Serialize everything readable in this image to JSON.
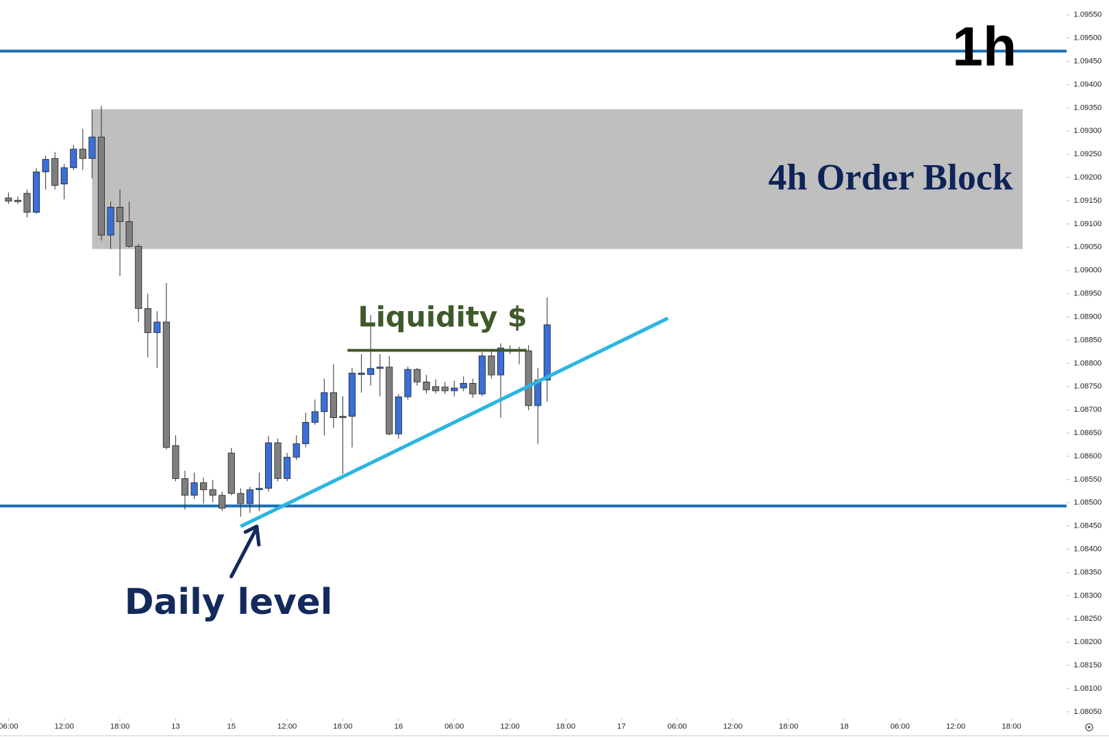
{
  "chart_data": {
    "type": "candlestick",
    "timeframe": "1h",
    "up_color": "#3a6fd8",
    "down_color": "#7f7f7f",
    "xlim": [
      -0.914,
      113.93
    ],
    "ylim": [
      1.08035,
      1.09582
    ],
    "xticks": [
      {
        "value": 0,
        "label": "06:00"
      },
      {
        "value": 6,
        "label": "12:00"
      },
      {
        "value": 12,
        "label": "18:00"
      },
      {
        "value": 18,
        "label": "13"
      },
      {
        "value": 24,
        "label": "15"
      },
      {
        "value": 30,
        "label": "12:00"
      },
      {
        "value": 36,
        "label": "18:00"
      },
      {
        "value": 42,
        "label": "16"
      },
      {
        "value": 48,
        "label": "06:00"
      },
      {
        "value": 54,
        "label": "12:00"
      },
      {
        "value": 60,
        "label": "18:00"
      },
      {
        "value": 66,
        "label": "17"
      },
      {
        "value": 72,
        "label": "06:00"
      },
      {
        "value": 78,
        "label": "12:00"
      },
      {
        "value": 84,
        "label": "18:00"
      },
      {
        "value": 90,
        "label": "18"
      },
      {
        "value": 96,
        "label": "06:00"
      },
      {
        "value": 102,
        "label": "12:00"
      },
      {
        "value": 108,
        "label": "18:00"
      }
    ],
    "yticks": [
      {
        "value": 1.0805,
        "label": "1.08050"
      },
      {
        "value": 1.081,
        "label": "1.08100"
      },
      {
        "value": 1.0815,
        "label": "1.08150"
      },
      {
        "value": 1.082,
        "label": "1.08200"
      },
      {
        "value": 1.0825,
        "label": "1.08250"
      },
      {
        "value": 1.083,
        "label": "1.08300"
      },
      {
        "value": 1.0835,
        "label": "1.08350"
      },
      {
        "value": 1.084,
        "label": "1.08400"
      },
      {
        "value": 1.0845,
        "label": "1.08450"
      },
      {
        "value": 1.085,
        "label": "1.08500"
      },
      {
        "value": 1.0855,
        "label": "1.08550"
      },
      {
        "value": 1.086,
        "label": "1.08600"
      },
      {
        "value": 1.0865,
        "label": "1.08650"
      },
      {
        "value": 1.087,
        "label": "1.08700"
      },
      {
        "value": 1.0875,
        "label": "1.08750"
      },
      {
        "value": 1.088,
        "label": "1.08800"
      },
      {
        "value": 1.0885,
        "label": "1.08850"
      },
      {
        "value": 1.089,
        "label": "1.08900"
      },
      {
        "value": 1.0895,
        "label": "1.08950"
      },
      {
        "value": 1.09,
        "label": "1.09000"
      },
      {
        "value": 1.0905,
        "label": "1.09050"
      },
      {
        "value": 1.091,
        "label": "1.09100"
      },
      {
        "value": 1.0915,
        "label": "1.09150"
      },
      {
        "value": 1.092,
        "label": "1.09200"
      },
      {
        "value": 1.0925,
        "label": "1.09250"
      },
      {
        "value": 1.093,
        "label": "1.09300"
      },
      {
        "value": 1.0935,
        "label": "1.09350"
      },
      {
        "value": 1.094,
        "label": "1.09400"
      },
      {
        "value": 1.0945,
        "label": "1.09450"
      },
      {
        "value": 1.095,
        "label": "1.09500"
      },
      {
        "value": 1.0955,
        "label": "1.09550"
      }
    ],
    "x": [
      0,
      1,
      2,
      3,
      4,
      5,
      6,
      7,
      8,
      9,
      10,
      11,
      12,
      13,
      14,
      15,
      16,
      17,
      18,
      19,
      20,
      21,
      22,
      23,
      24,
      25,
      26,
      27,
      28,
      29,
      30,
      31,
      32,
      33,
      34,
      35,
      36,
      37,
      38,
      39,
      40,
      41,
      42,
      43,
      44,
      45,
      46,
      47,
      48,
      49,
      50,
      51,
      52,
      53,
      54,
      55,
      56,
      57,
      58
    ],
    "open": [
      1.09156,
      1.09151,
      1.09166,
      1.09125,
      1.09212,
      1.09241,
      1.09186,
      1.09221,
      1.09261,
      1.09241,
      1.09287,
      1.09076,
      1.09136,
      1.09105,
      1.09052,
      1.08918,
      1.08866,
      1.08889,
      1.08623,
      1.08552,
      1.08516,
      1.08543,
      1.08528,
      1.08516,
      1.08607,
      1.0852,
      1.08498,
      1.08528,
      1.08531,
      1.08629,
      1.08552,
      1.08598,
      1.08627,
      1.08673,
      1.08696,
      1.08737,
      1.08686,
      1.08686,
      1.08776,
      1.08776,
      1.08789,
      1.08792,
      1.08648,
      1.08728,
      1.08787,
      1.0876,
      1.0875,
      1.08749,
      1.08741,
      1.08747,
      1.08757,
      1.08734,
      1.08816,
      1.08775,
      1.08828,
      1.0883,
      1.08827,
      1.08709,
      1.08764
    ],
    "high": [
      1.09168,
      1.09159,
      1.09174,
      1.0922,
      1.09247,
      1.09255,
      1.09229,
      1.0927,
      1.09305,
      1.09346,
      1.09354,
      1.09148,
      1.09174,
      1.09148,
      1.09057,
      1.0895,
      1.08912,
      1.08973,
      1.08645,
      1.08569,
      1.08565,
      1.08554,
      1.08549,
      1.08524,
      1.08618,
      1.08531,
      1.08534,
      1.08565,
      1.08644,
      1.08638,
      1.08607,
      1.08645,
      1.08694,
      1.08722,
      1.08767,
      1.08798,
      1.08729,
      1.0879,
      1.0882,
      1.08904,
      1.0882,
      1.08816,
      1.08734,
      1.08793,
      1.0879,
      1.08775,
      1.08766,
      1.0876,
      1.08763,
      1.08772,
      1.08767,
      1.08824,
      1.08828,
      1.08843,
      1.08839,
      1.08836,
      1.08839,
      1.0879,
      1.08942
    ],
    "low": [
      1.09143,
      1.09143,
      1.09114,
      1.09122,
      1.09174,
      1.09174,
      1.09153,
      1.09216,
      1.09216,
      1.09198,
      1.09064,
      1.09046,
      1.08988,
      1.09049,
      1.08889,
      1.08813,
      1.0879,
      1.08615,
      1.08546,
      1.08485,
      1.08508,
      1.08498,
      1.08501,
      1.08482,
      1.08516,
      1.0847,
      1.08478,
      1.08482,
      1.08524,
      1.08546,
      1.08546,
      1.08592,
      1.08619,
      1.08668,
      1.08645,
      1.08661,
      1.08562,
      1.08619,
      1.08737,
      1.08752,
      1.08729,
      1.08645,
      1.08638,
      1.08722,
      1.08752,
      1.08735,
      1.08735,
      1.08734,
      1.08729,
      1.0874,
      1.08726,
      1.08729,
      1.08767,
      1.08683,
      1.0882,
      1.08798,
      1.08699,
      1.08626,
      1.08717
    ],
    "close": [
      1.09149,
      1.09148,
      1.09125,
      1.09212,
      1.09239,
      1.09183,
      1.09221,
      1.09261,
      1.09241,
      1.09287,
      1.09076,
      1.09136,
      1.09105,
      1.09052,
      1.08918,
      1.08866,
      1.08889,
      1.08619,
      1.08552,
      1.08516,
      1.08543,
      1.08528,
      1.08516,
      1.08488,
      1.0852,
      1.08498,
      1.08528,
      1.08531,
      1.08629,
      1.08552,
      1.08598,
      1.08627,
      1.08673,
      1.08696,
      1.08737,
      1.08683,
      1.08683,
      1.08779,
      1.08779,
      1.08789,
      1.08792,
      1.08648,
      1.08728,
      1.08787,
      1.0876,
      1.08743,
      1.08741,
      1.08741,
      1.08747,
      1.08757,
      1.08734,
      1.08816,
      1.08775,
      1.08833,
      1.0883,
      1.08827,
      1.08709,
      1.08764,
      1.08883
    ],
    "levels": [
      {
        "value": 1.09472,
        "color": "#1b6db3"
      },
      {
        "value": 1.08493,
        "color": "#1b6db3",
        "label": "Daily level"
      }
    ],
    "zones": [
      {
        "x": [
          9,
          109.2
        ],
        "y": [
          1.09046,
          1.09347
        ],
        "color": "#bfbfbf",
        "label": "4h Order Block"
      }
    ],
    "lines": [
      {
        "x": [
          36.5,
          55.8
        ],
        "y": [
          1.08828,
          1.08828
        ],
        "color": "#3f5a2b",
        "label": "Liquidity $"
      },
      {
        "x": [
          25,
          71
        ],
        "y": [
          1.08449,
          1.08897
        ],
        "color": "#2bb5e2"
      }
    ]
  }
}
